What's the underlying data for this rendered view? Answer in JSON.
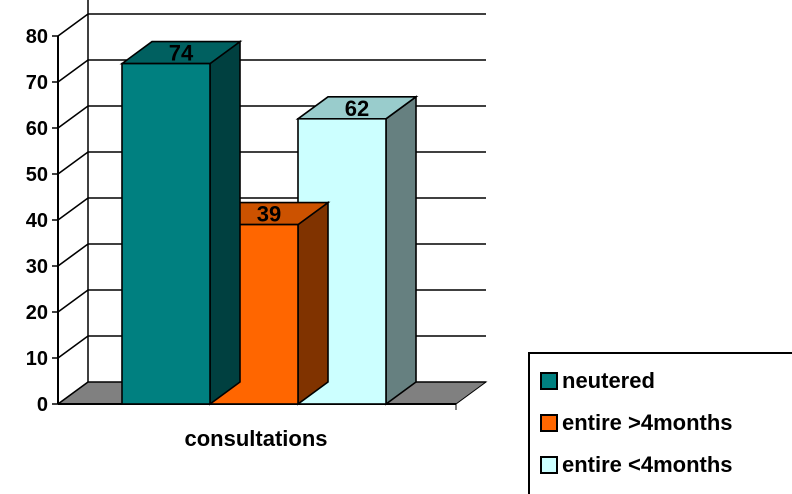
{
  "chart_data": {
    "type": "bar",
    "title": "",
    "xlabel": "",
    "ylabel": "",
    "categories": [
      "consultations"
    ],
    "ylim": [
      0,
      80
    ],
    "yticks": [
      0,
      10,
      20,
      30,
      40,
      50,
      60,
      70,
      80
    ],
    "grid": true,
    "legend_position": "bottom-right",
    "series": [
      {
        "name": "neutered",
        "values": [
          74
        ],
        "color": "#008080"
      },
      {
        "name": "entire >4months",
        "values": [
          39
        ],
        "color": "#FF6600"
      },
      {
        "name": "entire <4months",
        "values": [
          62
        ],
        "color": "#CCFFFF"
      }
    ]
  }
}
